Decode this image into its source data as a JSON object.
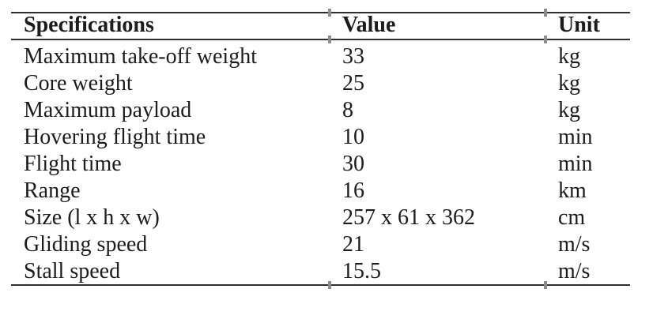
{
  "colors": {
    "background": "#ffffff",
    "text": "#1c1c1c",
    "rule": "#2f2f2f",
    "divider_tick": "#8d8d8d"
  },
  "table": {
    "headers": {
      "spec": "Specifications",
      "value": "Value",
      "unit": "Unit"
    },
    "rows": [
      {
        "spec": "Maximum take-off weight",
        "value": "33",
        "unit": "kg"
      },
      {
        "spec": "Core weight",
        "value": "25",
        "unit": "kg"
      },
      {
        "spec": "Maximum payload",
        "value": "8",
        "unit": "kg"
      },
      {
        "spec": "Hovering flight time",
        "value": "10",
        "unit": "min"
      },
      {
        "spec": "Flight time",
        "value": "30",
        "unit": "min"
      },
      {
        "spec": "Range",
        "value": "16",
        "unit": "km"
      },
      {
        "spec": "Size (l x h x w)",
        "value": "257 x 61 x 362",
        "unit": "cm"
      },
      {
        "spec": "Gliding speed",
        "value": "21",
        "unit": "m/s"
      },
      {
        "spec": "Stall speed",
        "value": "15.5",
        "unit": "m/s"
      }
    ]
  }
}
